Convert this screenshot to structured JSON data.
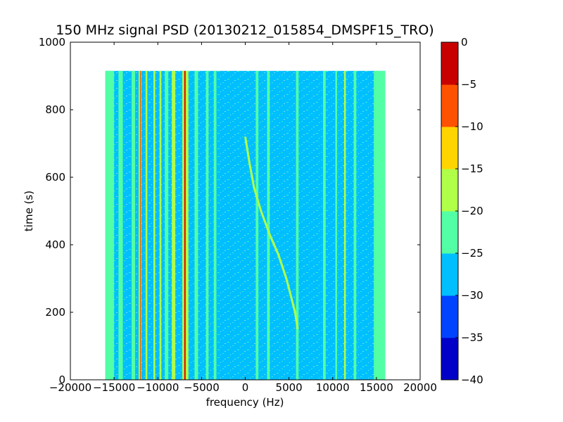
{
  "chart_data": {
    "type": "heatmap",
    "title": "150 MHz signal PSD (20130212_015854_DMSPF15_TRO)",
    "xlabel": "frequency (Hz)",
    "ylabel": "time (s)",
    "xlim": [
      -20000,
      20000
    ],
    "ylim": [
      0,
      1000
    ],
    "x_ticks": [
      -20000,
      -15000,
      -10000,
      -5000,
      0,
      5000,
      10000,
      15000,
      20000
    ],
    "x_tick_labels": [
      "−20000",
      "−15000",
      "−10000",
      "−5000",
      "0",
      "5000",
      "10000",
      "15000",
      "20000"
    ],
    "y_ticks": [
      0,
      200,
      400,
      600,
      800,
      1000
    ],
    "y_tick_labels": [
      "0",
      "200",
      "400",
      "600",
      "800",
      "1000"
    ],
    "data_extent": {
      "x": [
        -16000,
        16000
      ],
      "y": [
        0,
        915
      ]
    },
    "background_level": "-30 to -25",
    "colorbar": {
      "levels": [
        -40,
        -35,
        -30,
        -25,
        -20,
        -15,
        -10,
        -5,
        0
      ],
      "tick_labels": [
        "−40",
        "−35",
        "−30",
        "−25",
        "−20",
        "−15",
        "−10",
        "−5",
        "0"
      ],
      "colors": [
        "#0000c8",
        "#0044ff",
        "#00bfff",
        "#52ffa5",
        "#b0ff48",
        "#ffd500",
        "#ff5200",
        "#c80000"
      ]
    },
    "bands": [
      {
        "x0": -16000,
        "x1": -15000,
        "level": "-25 to -20"
      },
      {
        "x0": -14500,
        "x1": -14000,
        "level": "-25 to -20"
      },
      {
        "x0": -13000,
        "x1": -12600,
        "level": "-25 to -20"
      },
      {
        "x0": -12200,
        "x1": -11900,
        "level": "-20 to -15"
      },
      {
        "x0": -12050,
        "x1": -11950,
        "level": "-10 to -5"
      },
      {
        "x0": -11400,
        "x1": -11200,
        "level": "-20 to -15"
      },
      {
        "x0": -10500,
        "x1": -10300,
        "level": "-20 to -15"
      },
      {
        "x0": -9800,
        "x1": -9600,
        "level": "-20 to -15"
      },
      {
        "x0": -9200,
        "x1": -8800,
        "level": "-25 to -20"
      },
      {
        "x0": -8400,
        "x1": -8000,
        "level": "-20 to -15"
      },
      {
        "x0": -7200,
        "x1": -6500,
        "level": "-20 to -15"
      },
      {
        "x0": -7000,
        "x1": -6800,
        "level": "-10 to -5"
      },
      {
        "x0": -6950,
        "x1": -6850,
        "level": "-5 to 0"
      },
      {
        "x0": -5800,
        "x1": -5400,
        "level": "-25 to -20"
      },
      {
        "x0": -4500,
        "x1": -4200,
        "level": "-25 to -20"
      },
      {
        "x0": -3600,
        "x1": -3300,
        "level": "-25 to -20"
      },
      {
        "x0": 1200,
        "x1": 1500,
        "level": "-25 to -20"
      },
      {
        "x0": 2500,
        "x1": 2800,
        "level": "-25 to -20"
      },
      {
        "x0": 5800,
        "x1": 6100,
        "level": "-25 to -20"
      },
      {
        "x0": 8900,
        "x1": 9200,
        "level": "-25 to -20"
      },
      {
        "x0": 10300,
        "x1": 10500,
        "level": "-25 to -20"
      },
      {
        "x0": 11300,
        "x1": 11500,
        "level": "-20 to -15"
      },
      {
        "x0": 12400,
        "x1": 12700,
        "level": "-25 to -20"
      },
      {
        "x0": 14700,
        "x1": 16000,
        "level": "-25 to -20"
      }
    ],
    "trace": {
      "level": "-20 to -15",
      "points": [
        [
          0,
          720
        ],
        [
          500,
          640
        ],
        [
          1000,
          570
        ],
        [
          1800,
          500
        ],
        [
          2800,
          430
        ],
        [
          3800,
          370
        ],
        [
          4700,
          300
        ],
        [
          5300,
          240
        ],
        [
          5700,
          200
        ],
        [
          6000,
          150
        ]
      ]
    }
  }
}
